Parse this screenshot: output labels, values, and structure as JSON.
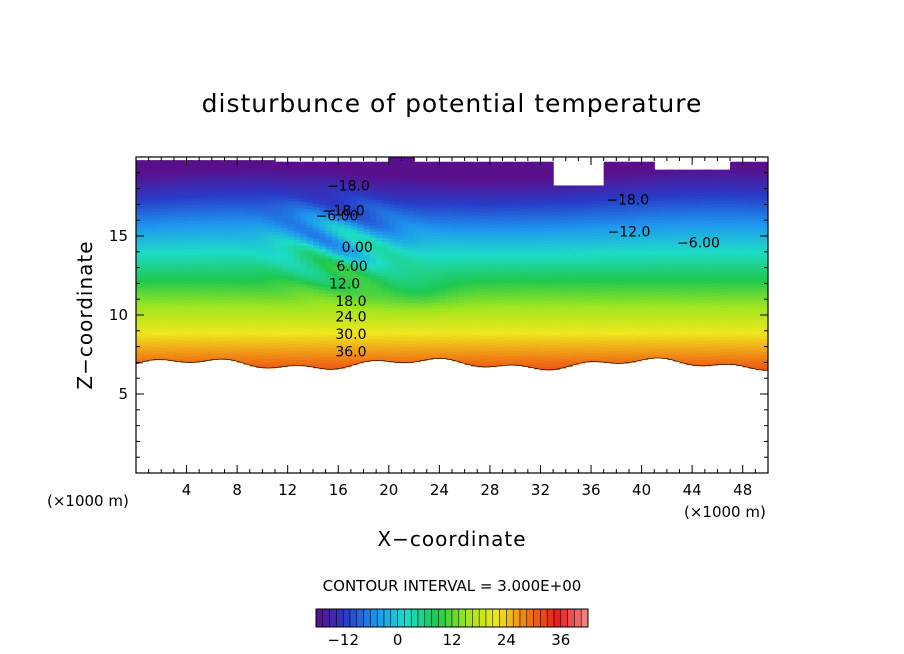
{
  "chart_data": {
    "type": "contour",
    "title": "disturbunce of potential temperature",
    "xlabel": "X−coordinate",
    "ylabel": "Z−coordinate",
    "x_unit": "(×1000 m)",
    "z_unit": "(×1000 m)",
    "xlim": [
      0,
      50
    ],
    "ylim": [
      0,
      20
    ],
    "x_ticks": [
      4,
      8,
      12,
      16,
      20,
      24,
      28,
      32,
      36,
      40,
      44,
      48
    ],
    "y_ticks": [
      5,
      10,
      15
    ],
    "contour_interval_text": "CONTOUR INTERVAL = 3.000E+00",
    "contour_interval": 3.0,
    "contour_labels": [
      {
        "text": "−18.0",
        "x": 16.8,
        "z": 18.2
      },
      {
        "text": "−18.0",
        "x": 38.9,
        "z": 17.3
      },
      {
        "text": "−18.0",
        "x": 16.4,
        "z": 16.6
      },
      {
        "text": "−6.00",
        "x": 15.9,
        "z": 16.3
      },
      {
        "text": "−12.0",
        "x": 39.0,
        "z": 15.3
      },
      {
        "text": "−6.00",
        "x": 44.5,
        "z": 14.6
      },
      {
        "text": "0.00",
        "x": 17.5,
        "z": 14.3
      },
      {
        "text": "6.00",
        "x": 17.1,
        "z": 13.1
      },
      {
        "text": "12.0",
        "x": 16.5,
        "z": 12.0
      },
      {
        "text": "18.0",
        "x": 17.0,
        "z": 10.9
      },
      {
        "text": "24.0",
        "x": 17.0,
        "z": 9.9
      },
      {
        "text": "30.0",
        "x": 17.0,
        "z": 8.8
      },
      {
        "text": "36.0",
        "x": 17.0,
        "z": 7.7
      }
    ],
    "colorbar": {
      "min": -18,
      "max": 42,
      "tick_values": [
        -12,
        0,
        12,
        24,
        36
      ],
      "tick_labels": [
        "−12",
        "0",
        "12",
        "24",
        "36"
      ],
      "colors": [
        "#5a0f8c",
        "#283cc8",
        "#1e96f0",
        "#1edcc8",
        "#1ec850",
        "#a0e61e",
        "#f0e61e",
        "#f07814",
        "#e61e1e",
        "#f08c8c"
      ]
    },
    "field_summary": "Stable stratification: theta disturbance increases from about -18 near the top (z~19) to about 39 near z~7; region below z~7 is blank. Turbulent overturning near x=13-26, z=11-18.",
    "grid": false
  }
}
